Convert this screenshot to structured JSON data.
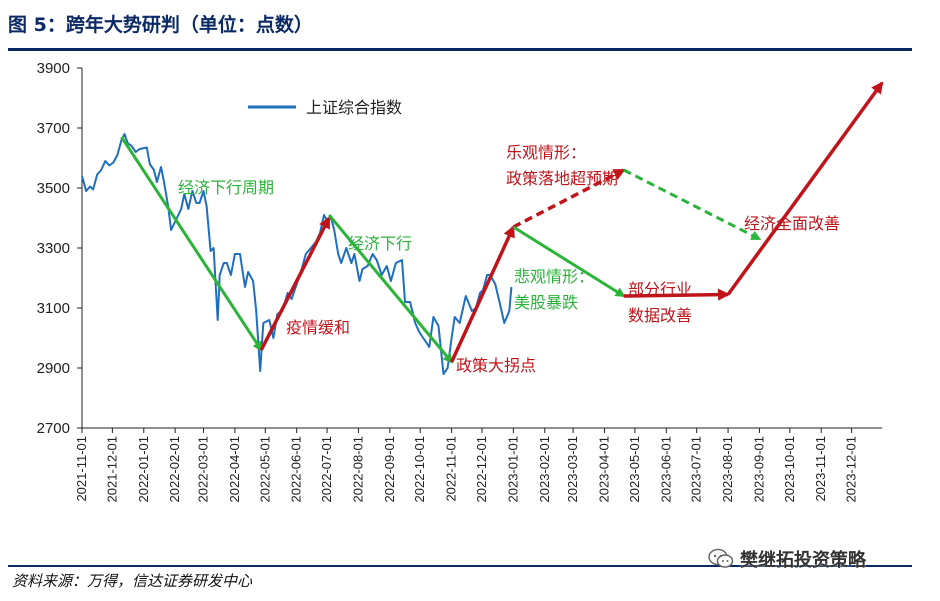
{
  "header": {
    "title": "图 5：跨年大势研判（单位：点数）"
  },
  "footer": {
    "source": "资料来源：万得，信达证券研发中心",
    "watermark": "樊继拓投资策略",
    "watermark_icon": "wechat-icon"
  },
  "colors": {
    "index_line": "#1f6fbf",
    "down_arrow": "#2bb33a",
    "up_arrow": "#c0141b",
    "axis": "#222222",
    "title": "#0b2a63"
  },
  "chart_data": {
    "type": "line",
    "title": "",
    "xlabel": "",
    "ylabel": "",
    "ylim": [
      2700,
      3900
    ],
    "yticks": [
      2700,
      2900,
      3100,
      3300,
      3500,
      3700,
      3900
    ],
    "xlim": [
      "2021-11-01",
      "2023-12-31"
    ],
    "xticks": [
      "2021-11-01",
      "2021-12-01",
      "2022-01-01",
      "2022-02-01",
      "2022-03-01",
      "2022-04-01",
      "2022-05-01",
      "2022-06-01",
      "2022-07-01",
      "2022-08-01",
      "2022-09-01",
      "2022-10-01",
      "2022-11-01",
      "2022-12-01",
      "2023-01-01",
      "2023-02-01",
      "2023-03-01",
      "2023-04-01",
      "2023-05-01",
      "2023-06-01",
      "2023-07-01",
      "2023-08-01",
      "2023-09-01",
      "2023-10-01",
      "2023-11-01",
      "2023-12-01"
    ],
    "legend": {
      "position": "top-left",
      "entries": [
        "上证综合指数"
      ]
    },
    "series": [
      {
        "name": "上证综合指数",
        "points": [
          [
            "2021-11-01",
            3540
          ],
          [
            "2021-11-05",
            3490
          ],
          [
            "2021-11-09",
            3505
          ],
          [
            "2021-11-12",
            3495
          ],
          [
            "2021-11-16",
            3545
          ],
          [
            "2021-11-20",
            3560
          ],
          [
            "2021-11-24",
            3590
          ],
          [
            "2021-11-28",
            3575
          ],
          [
            "2021-12-02",
            3585
          ],
          [
            "2021-12-06",
            3610
          ],
          [
            "2021-12-10",
            3660
          ],
          [
            "2021-12-13",
            3680
          ],
          [
            "2021-12-16",
            3650
          ],
          [
            "2021-12-20",
            3640
          ],
          [
            "2021-12-24",
            3620
          ],
          [
            "2021-12-28",
            3630
          ],
          [
            "2022-01-04",
            3635
          ],
          [
            "2022-01-07",
            3580
          ],
          [
            "2022-01-11",
            3560
          ],
          [
            "2022-01-14",
            3520
          ],
          [
            "2022-01-18",
            3570
          ],
          [
            "2022-01-21",
            3520
          ],
          [
            "2022-01-25",
            3440
          ],
          [
            "2022-01-28",
            3360
          ],
          [
            "2022-02-07",
            3430
          ],
          [
            "2022-02-10",
            3480
          ],
          [
            "2022-02-14",
            3430
          ],
          [
            "2022-02-18",
            3490
          ],
          [
            "2022-02-22",
            3450
          ],
          [
            "2022-02-25",
            3450
          ],
          [
            "2022-03-01",
            3490
          ],
          [
            "2022-03-04",
            3440
          ],
          [
            "2022-03-08",
            3290
          ],
          [
            "2022-03-11",
            3300
          ],
          [
            "2022-03-15",
            3060
          ],
          [
            "2022-03-17",
            3210
          ],
          [
            "2022-03-21",
            3250
          ],
          [
            "2022-03-24",
            3250
          ],
          [
            "2022-03-28",
            3210
          ],
          [
            "2022-04-01",
            3280
          ],
          [
            "2022-04-06",
            3280
          ],
          [
            "2022-04-11",
            3170
          ],
          [
            "2022-04-14",
            3220
          ],
          [
            "2022-04-19",
            3190
          ],
          [
            "2022-04-22",
            3090
          ],
          [
            "2022-04-26",
            2890
          ],
          [
            "2022-04-29",
            3050
          ],
          [
            "2022-05-05",
            3060
          ],
          [
            "2022-05-09",
            3000
          ],
          [
            "2022-05-13",
            3080
          ],
          [
            "2022-05-18",
            3090
          ],
          [
            "2022-05-23",
            3150
          ],
          [
            "2022-05-27",
            3130
          ],
          [
            "2022-06-01",
            3180
          ],
          [
            "2022-06-06",
            3230
          ],
          [
            "2022-06-10",
            3280
          ],
          [
            "2022-06-15",
            3300
          ],
          [
            "2022-06-20",
            3320
          ],
          [
            "2022-06-24",
            3350
          ],
          [
            "2022-06-28",
            3410
          ],
          [
            "2022-07-01",
            3390
          ],
          [
            "2022-07-05",
            3400
          ],
          [
            "2022-07-08",
            3360
          ],
          [
            "2022-07-12",
            3280
          ],
          [
            "2022-07-15",
            3250
          ],
          [
            "2022-07-20",
            3300
          ],
          [
            "2022-07-25",
            3250
          ],
          [
            "2022-07-28",
            3280
          ],
          [
            "2022-08-02",
            3190
          ],
          [
            "2022-08-05",
            3230
          ],
          [
            "2022-08-10",
            3240
          ],
          [
            "2022-08-15",
            3280
          ],
          [
            "2022-08-19",
            3260
          ],
          [
            "2022-08-24",
            3210
          ],
          [
            "2022-08-29",
            3240
          ],
          [
            "2022-09-02",
            3190
          ],
          [
            "2022-09-07",
            3250
          ],
          [
            "2022-09-13",
            3260
          ],
          [
            "2022-09-16",
            3120
          ],
          [
            "2022-09-21",
            3120
          ],
          [
            "2022-09-26",
            3050
          ],
          [
            "2022-09-30",
            3020
          ],
          [
            "2022-10-10",
            2970
          ],
          [
            "2022-10-14",
            3070
          ],
          [
            "2022-10-19",
            3040
          ],
          [
            "2022-10-24",
            2880
          ],
          [
            "2022-10-28",
            2900
          ],
          [
            "2022-11-01",
            3000
          ],
          [
            "2022-11-04",
            3070
          ],
          [
            "2022-11-09",
            3050
          ],
          [
            "2022-11-11",
            3080
          ],
          [
            "2022-11-15",
            3140
          ],
          [
            "2022-11-21",
            3090
          ],
          [
            "2022-11-25",
            3100
          ],
          [
            "2022-11-29",
            3150
          ],
          [
            "2022-12-02",
            3160
          ],
          [
            "2022-12-06",
            3210
          ],
          [
            "2022-12-09",
            3210
          ],
          [
            "2022-12-14",
            3180
          ],
          [
            "2022-12-19",
            3110
          ],
          [
            "2022-12-23",
            3050
          ],
          [
            "2022-12-28",
            3090
          ],
          [
            "2022-12-30",
            3170
          ]
        ]
      }
    ],
    "annotations": [
      {
        "label": "经济下行周期",
        "color": "down",
        "arrow": {
          "from": [
            "2021-12-10",
            3670
          ],
          "to": [
            "2022-04-27",
            2960
          ]
        }
      },
      {
        "label": "疫情缓和",
        "color": "up",
        "arrow": {
          "from": [
            "2022-04-27",
            2960
          ],
          "to": [
            "2022-07-03",
            3400
          ]
        }
      },
      {
        "label": "经济下行",
        "color": "down",
        "arrow": {
          "from": [
            "2022-07-03",
            3410
          ],
          "to": [
            "2022-11-01",
            2920
          ]
        }
      },
      {
        "label": "政策大拐点",
        "color": "up",
        "arrow": {
          "from": [
            "2022-11-01",
            2920
          ],
          "to": [
            "2023-01-01",
            3370
          ]
        }
      },
      {
        "label": "乐观情形：",
        "label2": "政策落地超预期",
        "color": "up",
        "dashed": true,
        "arrow": {
          "from": [
            "2023-01-01",
            3370
          ],
          "to": [
            "2023-04-20",
            3560
          ]
        }
      },
      {
        "label": "悲观情形：",
        "label2": "美股暴跌",
        "color": "down",
        "arrow": {
          "from": [
            "2023-01-01",
            3370
          ],
          "to": [
            "2023-04-20",
            3140
          ]
        }
      },
      {
        "label": "部分行业",
        "label2": "数据改善",
        "color": "up",
        "arrow": {
          "from": [
            "2023-04-20",
            3140
          ],
          "to": [
            "2023-08-01",
            3145
          ]
        }
      },
      {
        "label": "",
        "color": "down",
        "dashed": true,
        "arrow": {
          "from": [
            "2023-04-20",
            3560
          ],
          "to": [
            "2023-09-01",
            3330
          ]
        }
      },
      {
        "label": "经济全面改善",
        "color": "up",
        "arrow": {
          "from": [
            "2023-08-01",
            3145
          ],
          "to": [
            "2023-12-31",
            3850
          ]
        }
      }
    ]
  }
}
